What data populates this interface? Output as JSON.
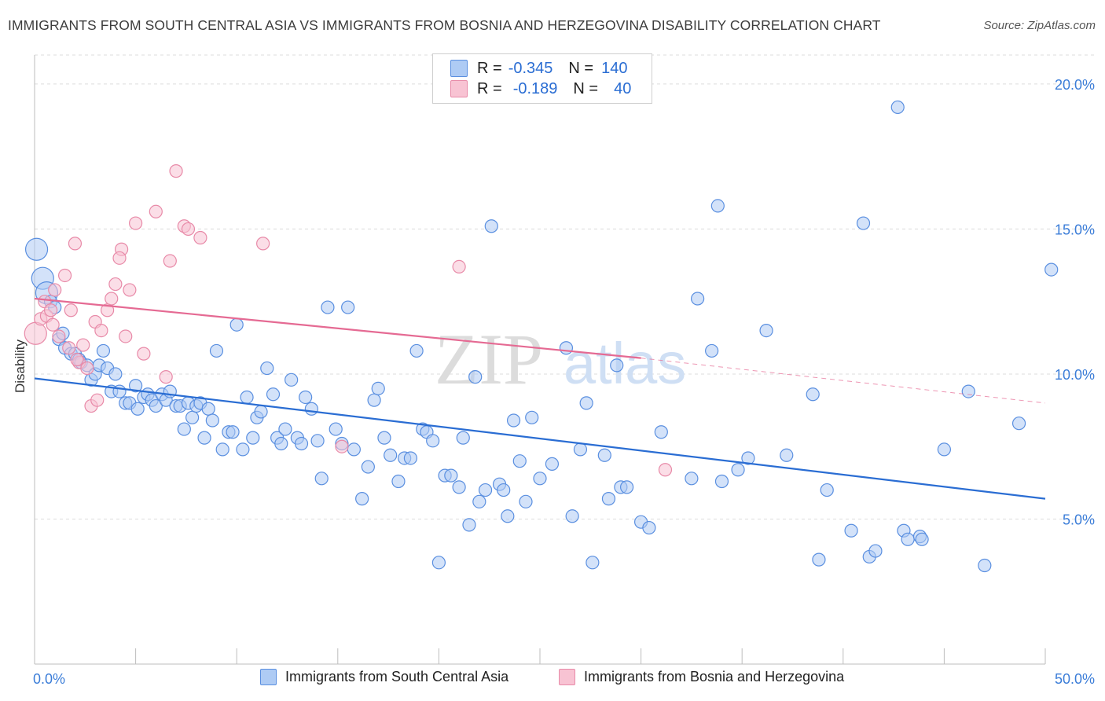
{
  "header": {
    "title": "IMMIGRANTS FROM SOUTH CENTRAL ASIA VS IMMIGRANTS FROM BOSNIA AND HERZEGOVINA DISABILITY CORRELATION CHART",
    "source": "Source: ZipAtlas.com"
  },
  "watermark": {
    "zip": "ZIP",
    "atlas": "atlas"
  },
  "legend": {
    "r_label": "R =",
    "n_label": "N =",
    "series_a": {
      "r": "-0.345",
      "n": "140"
    },
    "series_b": {
      "r": "-0.189",
      "n": "40"
    }
  },
  "colors": {
    "blue_fill": "#aecbf4",
    "blue_stroke": "#5a8fe0",
    "blue_line": "#2a6dd3",
    "pink_fill": "#f8c3d3",
    "pink_stroke": "#e88aa8",
    "pink_line": "#e56a93",
    "tick_text": "#3b7dd8",
    "grid": "#dcdcdc"
  },
  "chart_data": {
    "type": "scatter",
    "title": "IMMIGRANTS FROM SOUTH CENTRAL ASIA VS IMMIGRANTS FROM BOSNIA AND HERZEGOVINA DISABILITY CORRELATION CHART",
    "xlabel": "",
    "ylabel": "Disability",
    "xlim": [
      0,
      50
    ],
    "ylim": [
      0,
      21
    ],
    "x_tick_labels": [
      "0.0%",
      "50.0%"
    ],
    "y_ticks": [
      5,
      10,
      15,
      20
    ],
    "y_tick_labels": [
      "5.0%",
      "10.0%",
      "15.0%",
      "20.0%"
    ],
    "grid": true,
    "legend_position": "top-center",
    "series": [
      {
        "name": "Immigrants from South Central Asia",
        "color": "#5a8fe0",
        "trend": {
          "x": [
            0,
            50
          ],
          "y": [
            9.85,
            5.7
          ]
        },
        "points": [
          {
            "x": 0.1,
            "y": 14.3,
            "big": true
          },
          {
            "x": 0.4,
            "y": 13.3,
            "big": true
          },
          {
            "x": 0.6,
            "y": 12.8,
            "big": true
          },
          {
            "x": 0.8,
            "y": 12.5
          },
          {
            "x": 1.0,
            "y": 12.3
          },
          {
            "x": 1.2,
            "y": 11.2
          },
          {
            "x": 1.4,
            "y": 11.4
          },
          {
            "x": 1.5,
            "y": 10.9
          },
          {
            "x": 1.8,
            "y": 10.7
          },
          {
            "x": 2.0,
            "y": 10.7
          },
          {
            "x": 2.2,
            "y": 10.5
          },
          {
            "x": 2.3,
            "y": 10.4
          },
          {
            "x": 2.6,
            "y": 10.3
          },
          {
            "x": 2.8,
            "y": 9.8
          },
          {
            "x": 3.0,
            "y": 10.0
          },
          {
            "x": 3.2,
            "y": 10.3
          },
          {
            "x": 3.4,
            "y": 10.8
          },
          {
            "x": 3.6,
            "y": 10.2
          },
          {
            "x": 3.8,
            "y": 9.4
          },
          {
            "x": 4.0,
            "y": 10.0
          },
          {
            "x": 4.2,
            "y": 9.4
          },
          {
            "x": 4.5,
            "y": 9.0
          },
          {
            "x": 4.7,
            "y": 9.0
          },
          {
            "x": 5.0,
            "y": 9.6
          },
          {
            "x": 5.1,
            "y": 8.8
          },
          {
            "x": 5.4,
            "y": 9.2
          },
          {
            "x": 5.6,
            "y": 9.3
          },
          {
            "x": 5.8,
            "y": 9.1
          },
          {
            "x": 6.0,
            "y": 8.9
          },
          {
            "x": 6.3,
            "y": 9.3
          },
          {
            "x": 6.5,
            "y": 9.1
          },
          {
            "x": 6.7,
            "y": 9.4
          },
          {
            "x": 7.0,
            "y": 8.9
          },
          {
            "x": 7.2,
            "y": 8.9
          },
          {
            "x": 7.4,
            "y": 8.1
          },
          {
            "x": 7.6,
            "y": 9.0
          },
          {
            "x": 7.8,
            "y": 8.5
          },
          {
            "x": 8.0,
            "y": 8.9
          },
          {
            "x": 8.2,
            "y": 9.0
          },
          {
            "x": 8.4,
            "y": 7.8
          },
          {
            "x": 8.6,
            "y": 8.8
          },
          {
            "x": 8.8,
            "y": 8.4
          },
          {
            "x": 9.0,
            "y": 10.8
          },
          {
            "x": 9.3,
            "y": 7.4
          },
          {
            "x": 9.6,
            "y": 8.0
          },
          {
            "x": 9.8,
            "y": 8.0
          },
          {
            "x": 10.0,
            "y": 11.7
          },
          {
            "x": 10.3,
            "y": 7.4
          },
          {
            "x": 10.5,
            "y": 9.2
          },
          {
            "x": 10.8,
            "y": 7.8
          },
          {
            "x": 11.0,
            "y": 8.5
          },
          {
            "x": 11.2,
            "y": 8.7
          },
          {
            "x": 11.5,
            "y": 10.2
          },
          {
            "x": 11.8,
            "y": 9.3
          },
          {
            "x": 12.0,
            "y": 7.8
          },
          {
            "x": 12.2,
            "y": 7.6
          },
          {
            "x": 12.4,
            "y": 8.1
          },
          {
            "x": 12.7,
            "y": 9.8
          },
          {
            "x": 13.0,
            "y": 7.8
          },
          {
            "x": 13.2,
            "y": 7.6
          },
          {
            "x": 13.4,
            "y": 9.2
          },
          {
            "x": 13.7,
            "y": 8.8
          },
          {
            "x": 14.0,
            "y": 7.7
          },
          {
            "x": 14.2,
            "y": 6.4
          },
          {
            "x": 14.5,
            "y": 12.3
          },
          {
            "x": 14.9,
            "y": 8.1
          },
          {
            "x": 15.2,
            "y": 7.6
          },
          {
            "x": 15.5,
            "y": 12.3
          },
          {
            "x": 15.8,
            "y": 7.4
          },
          {
            "x": 16.2,
            "y": 5.7
          },
          {
            "x": 16.5,
            "y": 6.8
          },
          {
            "x": 16.8,
            "y": 9.1
          },
          {
            "x": 17.0,
            "y": 9.5
          },
          {
            "x": 17.3,
            "y": 7.8
          },
          {
            "x": 17.6,
            "y": 7.2
          },
          {
            "x": 18.0,
            "y": 6.3
          },
          {
            "x": 18.3,
            "y": 7.1
          },
          {
            "x": 18.6,
            "y": 7.1
          },
          {
            "x": 18.9,
            "y": 10.8
          },
          {
            "x": 19.2,
            "y": 8.1
          },
          {
            "x": 19.4,
            "y": 8.0
          },
          {
            "x": 19.7,
            "y": 7.7
          },
          {
            "x": 20.0,
            "y": 3.5
          },
          {
            "x": 20.3,
            "y": 6.5
          },
          {
            "x": 20.6,
            "y": 6.5
          },
          {
            "x": 21.0,
            "y": 6.1
          },
          {
            "x": 21.2,
            "y": 7.8
          },
          {
            "x": 21.5,
            "y": 4.8
          },
          {
            "x": 21.8,
            "y": 9.9
          },
          {
            "x": 22.0,
            "y": 5.6
          },
          {
            "x": 22.3,
            "y": 6.0
          },
          {
            "x": 22.6,
            "y": 15.1
          },
          {
            "x": 23.0,
            "y": 6.2
          },
          {
            "x": 23.2,
            "y": 6.0
          },
          {
            "x": 23.4,
            "y": 5.1
          },
          {
            "x": 23.7,
            "y": 8.4
          },
          {
            "x": 24.0,
            "y": 7.0
          },
          {
            "x": 24.3,
            "y": 5.6
          },
          {
            "x": 24.6,
            "y": 8.5
          },
          {
            "x": 25.0,
            "y": 6.4
          },
          {
            "x": 25.6,
            "y": 6.9
          },
          {
            "x": 26.3,
            "y": 10.9
          },
          {
            "x": 26.6,
            "y": 5.1
          },
          {
            "x": 27.0,
            "y": 7.4
          },
          {
            "x": 27.3,
            "y": 9.0
          },
          {
            "x": 27.6,
            "y": 3.5
          },
          {
            "x": 28.2,
            "y": 7.2
          },
          {
            "x": 28.4,
            "y": 5.7
          },
          {
            "x": 28.8,
            "y": 10.3
          },
          {
            "x": 29.0,
            "y": 6.1
          },
          {
            "x": 29.3,
            "y": 6.1
          },
          {
            "x": 30.0,
            "y": 4.9
          },
          {
            "x": 30.4,
            "y": 4.7
          },
          {
            "x": 31.0,
            "y": 8.0
          },
          {
            "x": 32.5,
            "y": 6.4
          },
          {
            "x": 32.8,
            "y": 12.6
          },
          {
            "x": 33.5,
            "y": 10.8
          },
          {
            "x": 33.8,
            "y": 15.8
          },
          {
            "x": 34.0,
            "y": 6.3
          },
          {
            "x": 34.8,
            "y": 6.7
          },
          {
            "x": 35.3,
            "y": 7.1
          },
          {
            "x": 36.2,
            "y": 11.5
          },
          {
            "x": 37.2,
            "y": 7.2
          },
          {
            "x": 38.5,
            "y": 9.3
          },
          {
            "x": 38.8,
            "y": 3.6
          },
          {
            "x": 39.2,
            "y": 6.0
          },
          {
            "x": 40.4,
            "y": 4.6
          },
          {
            "x": 41.0,
            "y": 15.2
          },
          {
            "x": 41.3,
            "y": 3.7
          },
          {
            "x": 41.6,
            "y": 3.9
          },
          {
            "x": 42.7,
            "y": 19.2
          },
          {
            "x": 43.0,
            "y": 4.6
          },
          {
            "x": 43.2,
            "y": 4.3
          },
          {
            "x": 43.8,
            "y": 4.4
          },
          {
            "x": 43.9,
            "y": 4.3
          },
          {
            "x": 45.0,
            "y": 7.4
          },
          {
            "x": 46.2,
            "y": 9.4
          },
          {
            "x": 47.0,
            "y": 3.4
          },
          {
            "x": 48.7,
            "y": 8.3
          },
          {
            "x": 50.3,
            "y": 13.6
          }
        ]
      },
      {
        "name": "Immigrants from Bosnia and Herzegovina",
        "color": "#e88aa8",
        "trend": {
          "x": [
            0,
            30
          ],
          "y": [
            12.6,
            10.55
          ]
        },
        "trend_dashed": {
          "x": [
            30,
            50
          ],
          "y": [
            10.55,
            9.0
          ]
        },
        "points": [
          {
            "x": 0.05,
            "y": 11.4,
            "big": true
          },
          {
            "x": 0.3,
            "y": 11.9
          },
          {
            "x": 0.5,
            "y": 12.5
          },
          {
            "x": 0.6,
            "y": 12.0
          },
          {
            "x": 0.8,
            "y": 12.2
          },
          {
            "x": 1.0,
            "y": 12.9
          },
          {
            "x": 1.2,
            "y": 11.3
          },
          {
            "x": 1.5,
            "y": 13.4
          },
          {
            "x": 1.7,
            "y": 10.9
          },
          {
            "x": 1.8,
            "y": 12.2
          },
          {
            "x": 2.0,
            "y": 14.5
          },
          {
            "x": 2.2,
            "y": 10.4
          },
          {
            "x": 2.4,
            "y": 11.0
          },
          {
            "x": 2.6,
            "y": 10.2
          },
          {
            "x": 2.8,
            "y": 8.9
          },
          {
            "x": 3.0,
            "y": 11.8
          },
          {
            "x": 3.3,
            "y": 11.5
          },
          {
            "x": 3.6,
            "y": 12.2
          },
          {
            "x": 3.8,
            "y": 12.6
          },
          {
            "x": 4.0,
            "y": 13.1
          },
          {
            "x": 4.3,
            "y": 14.3
          },
          {
            "x": 4.5,
            "y": 11.3
          },
          {
            "x": 4.7,
            "y": 12.9
          },
          {
            "x": 5.0,
            "y": 15.2
          },
          {
            "x": 5.4,
            "y": 10.7
          },
          {
            "x": 6.0,
            "y": 15.6
          },
          {
            "x": 6.5,
            "y": 9.9
          },
          {
            "x": 7.0,
            "y": 17.0
          },
          {
            "x": 7.4,
            "y": 15.1
          },
          {
            "x": 7.6,
            "y": 15.0
          },
          {
            "x": 8.2,
            "y": 14.7
          },
          {
            "x": 11.3,
            "y": 14.5
          },
          {
            "x": 15.2,
            "y": 7.5
          },
          {
            "x": 21.0,
            "y": 13.7
          },
          {
            "x": 31.2,
            "y": 6.7
          },
          {
            "x": 0.9,
            "y": 11.7
          },
          {
            "x": 2.1,
            "y": 10.5
          },
          {
            "x": 3.1,
            "y": 9.1
          },
          {
            "x": 6.7,
            "y": 13.9
          },
          {
            "x": 4.2,
            "y": 14.0
          }
        ]
      }
    ]
  },
  "bottom_legend": {
    "series_a": "Immigrants from South Central Asia",
    "series_b": "Immigrants from Bosnia and Herzegovina"
  }
}
